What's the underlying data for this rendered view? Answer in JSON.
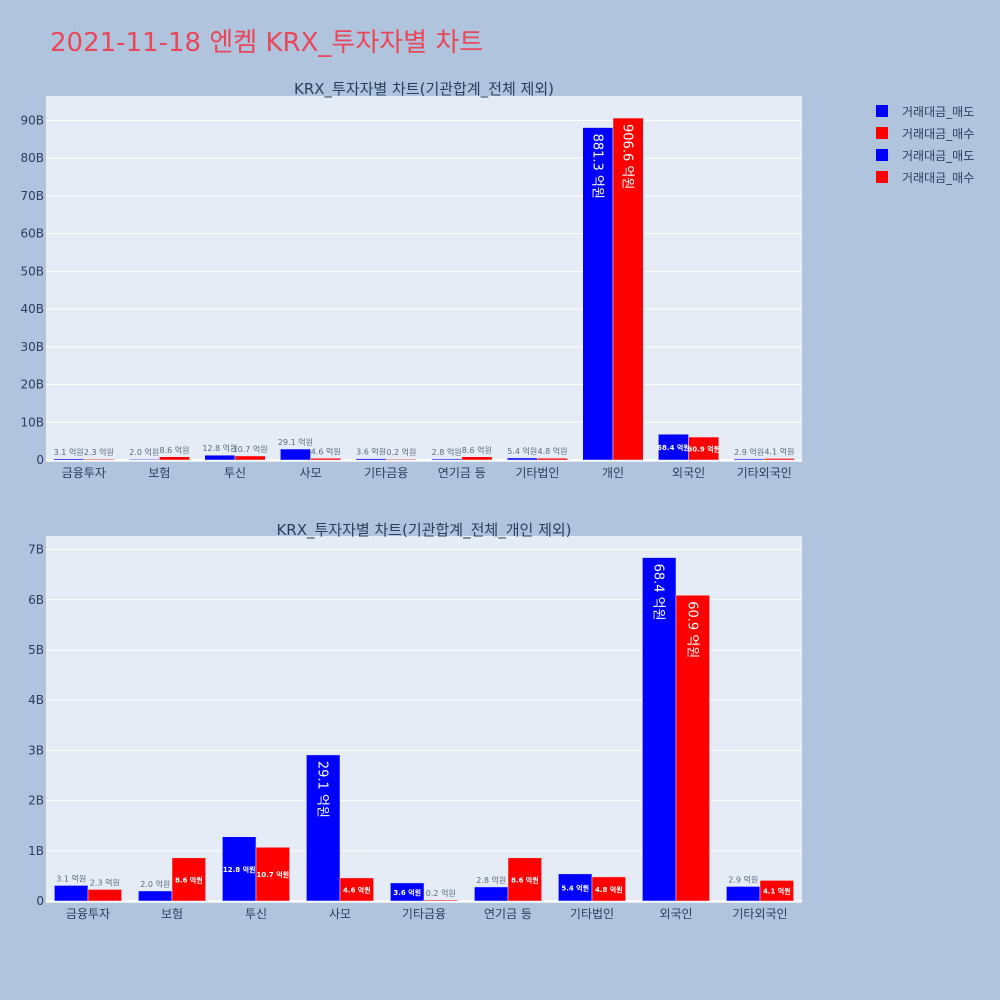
{
  "title": "2021-11-18 엔켐 KRX_투자자별 차트",
  "legend": [
    {
      "name": "거래대금_매도",
      "color": "#0000ff"
    },
    {
      "name": "거래대금_매수",
      "color": "#ff0000"
    },
    {
      "name": "거래대금_매도",
      "color": "#0000ff"
    },
    {
      "name": "거래대금_매수",
      "color": "#ff0000"
    }
  ],
  "chart_data": [
    {
      "type": "bar",
      "title": "KRX_투자자별 차트(기관합계_전체 제외)",
      "categories": [
        "금융투자",
        "보험",
        "투신",
        "사모",
        "기타금융",
        "연기금 등",
        "기타법인",
        "개인",
        "외국인",
        "기타외국인"
      ],
      "yticks": [
        0,
        10,
        20,
        30,
        40,
        50,
        60,
        70,
        80,
        90
      ],
      "ytick_labels": [
        "0",
        "10B",
        "20B",
        "30B",
        "40B",
        "50B",
        "60B",
        "70B",
        "80B",
        "90B"
      ],
      "ylim": [
        0,
        96.5
      ],
      "grid": true,
      "series": [
        {
          "name": "거래대금_매도",
          "color": "#0000ff",
          "values": [
            0.31,
            0.2,
            1.28,
            2.91,
            0.36,
            0.28,
            0.54,
            88.13,
            6.84,
            0.29
          ],
          "labels": [
            "3.1 억원",
            "2.0 억원",
            "12.8 억원",
            "29.1 억원",
            "3.6 억원",
            "2.8 억원",
            "5.4 억원",
            "881.3 억원",
            "68.4 억원",
            "2.9 억원"
          ]
        },
        {
          "name": "거래대금_매수",
          "color": "#ff0000",
          "values": [
            0.23,
            0.86,
            1.07,
            0.46,
            0.02,
            0.86,
            0.48,
            90.66,
            6.09,
            0.41
          ],
          "labels": [
            "2.3 억원",
            "8.6 억원",
            "10.7 억원",
            "4.6 억원",
            "0.2 억원",
            "8.6 억원",
            "4.8 억원",
            "906.6 억원",
            "60.9 억원",
            "4.1 억원"
          ]
        }
      ]
    },
    {
      "type": "bar",
      "title": "KRX_투자자별 차트(기관합계_전체_개인 제외)",
      "categories": [
        "금융투자",
        "보험",
        "투신",
        "사모",
        "기타금융",
        "연기금 등",
        "기타법인",
        "외국인",
        "기타외국인"
      ],
      "yticks": [
        0,
        1,
        2,
        3,
        4,
        5,
        6,
        7
      ],
      "ytick_labels": [
        "0",
        "1B",
        "2B",
        "3B",
        "4B",
        "5B",
        "6B",
        "7B"
      ],
      "ylim": [
        0,
        7.27
      ],
      "grid": true,
      "series": [
        {
          "name": "거래대금_매도",
          "color": "#0000ff",
          "values": [
            0.31,
            0.2,
            1.28,
            2.91,
            0.36,
            0.28,
            0.54,
            6.84,
            0.29
          ],
          "labels": [
            "3.1 억원",
            "2.0 억원",
            "12.8 억원",
            "29.1 억원",
            "3.6 억원",
            "2.8 억원",
            "5.4 억원",
            "68.4 억원",
            "2.9 억원"
          ]
        },
        {
          "name": "거래대금_매수",
          "color": "#ff0000",
          "values": [
            0.23,
            0.86,
            1.07,
            0.46,
            0.02,
            0.86,
            0.48,
            6.09,
            0.41
          ],
          "labels": [
            "2.3 억원",
            "8.6 억원",
            "10.7 억원",
            "4.6 억원",
            "0.2 억원",
            "8.6 억원",
            "4.8 억원",
            "60.9 억원",
            "4.1 억원"
          ]
        }
      ]
    }
  ]
}
